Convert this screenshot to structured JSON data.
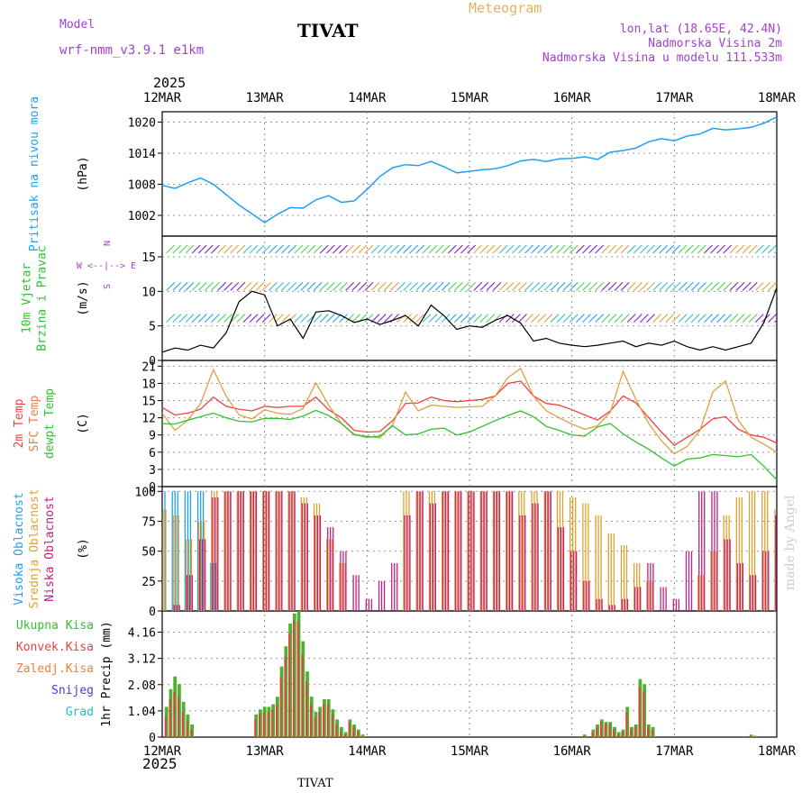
{
  "header": {
    "model_label": "Model",
    "model_name": "wrf-nmm_v3.9.1  e1km",
    "station": "TIVAT",
    "product": "Meteogram",
    "lonlat": "lon,lat (18.65E, 42.4N)",
    "elevation": "Nadmorska Visina 2m",
    "model_elevation": "Nadmorska Visina u modelu 111.533m",
    "year": "2025",
    "credit": "made by Angel"
  },
  "colors": {
    "pressure": "#1ea0ee",
    "wind_speed": "#000000",
    "t2m": "#f04040",
    "tsfc": "#e0a040",
    "dewpoint": "#30c030",
    "high_cloud": "#20a0f0",
    "mid_cloud": "#e0a030",
    "low_cloud": "#c02080",
    "precip_total": "#50b030",
    "precip_conv": "#e04040",
    "label_green": "#30c030",
    "label_red": "#f04040",
    "label_orange": "#f08040",
    "label_blue": "#4040e0",
    "label_cyan": "#20c0c0",
    "label_purple": "#a33fd4"
  },
  "x_axis": {
    "ticks": [
      "12MAR",
      "13MAR",
      "14MAR",
      "15MAR",
      "16MAR",
      "17MAR",
      "18MAR"
    ],
    "range_hours": [
      0,
      144
    ]
  },
  "chart_data": [
    {
      "type": "line",
      "id": "pressure",
      "ylabel": "(hPa)",
      "side_labels": [
        "Pritisak na nivou mora"
      ],
      "yticks": [
        1002,
        1008,
        1014,
        1020
      ],
      "ylim": [
        998,
        1022
      ],
      "x": [
        0,
        3,
        6,
        9,
        12,
        15,
        18,
        21,
        24,
        27,
        30,
        33,
        36,
        39,
        42,
        45,
        48,
        51,
        54,
        57,
        60,
        63,
        66,
        69,
        72,
        75,
        78,
        81,
        84,
        87,
        90,
        93,
        96,
        99,
        102,
        105,
        108,
        111,
        114,
        117,
        120,
        123,
        126,
        129,
        132,
        135,
        138,
        141,
        144
      ],
      "series": [
        {
          "values": [
            1007.8,
            1007.2,
            1008.3,
            1009.2,
            1008.0,
            1006.0,
            1004.0,
            1002.3,
            1000.6,
            1002.2,
            1003.5,
            1003.4,
            1005.0,
            1005.8,
            1004.5,
            1004.8,
            1007.0,
            1009.5,
            1011.2,
            1011.8,
            1011.6,
            1012.4,
            1011.4,
            1010.2,
            1010.5,
            1010.8,
            1011.0,
            1011.6,
            1012.5,
            1012.8,
            1012.4,
            1012.9,
            1013.0,
            1013.3,
            1012.8,
            1014.2,
            1014.5,
            1015.0,
            1016.2,
            1016.8,
            1016.4,
            1017.3,
            1017.7,
            1018.8,
            1018.5,
            1018.7,
            1019.0,
            1019.8,
            1021.0
          ]
        }
      ]
    },
    {
      "type": "line",
      "id": "wind",
      "ylabel": "(m/s)",
      "side_labels": [
        "10m Vjetar",
        "Brzina i Pravac"
      ],
      "compass": "N",
      "compass_row": "W <--|--> E",
      "compass_bottom": "S",
      "yticks": [
        0,
        5,
        10,
        15
      ],
      "ylim": [
        0,
        18
      ],
      "x": [
        0,
        3,
        6,
        9,
        12,
        15,
        18,
        21,
        24,
        27,
        30,
        33,
        36,
        39,
        42,
        45,
        48,
        51,
        54,
        57,
        60,
        63,
        66,
        69,
        72,
        75,
        78,
        81,
        84,
        87,
        90,
        93,
        96,
        99,
        102,
        105,
        108,
        111,
        114,
        117,
        120,
        123,
        126,
        129,
        132,
        135,
        138,
        141,
        144
      ],
      "series": [
        {
          "values": [
            1.2,
            1.8,
            1.5,
            2.2,
            1.8,
            4.0,
            8.5,
            10.0,
            9.5,
            5.0,
            6.0,
            3.2,
            7.0,
            7.2,
            6.5,
            5.5,
            6.0,
            5.2,
            5.8,
            6.5,
            5.0,
            8.0,
            6.5,
            4.5,
            5.0,
            4.8,
            5.8,
            6.5,
            5.4,
            2.8,
            3.2,
            2.5,
            2.2,
            2.0,
            2.2,
            2.5,
            2.8,
            2.0,
            2.5,
            2.2,
            2.8,
            2.0,
            1.5,
            2.0,
            1.5,
            2.0,
            2.5,
            5.5,
            10.5
          ]
        }
      ]
    },
    {
      "type": "line",
      "id": "temperature",
      "ylabel": "(C)",
      "side_labels": [
        "2m Temp",
        "SFC Temp",
        "dewpt Temp"
      ],
      "yticks": [
        0,
        3,
        6,
        9,
        12,
        15,
        18,
        21
      ],
      "ylim": [
        0,
        22
      ],
      "x": [
        0,
        3,
        6,
        9,
        12,
        15,
        18,
        21,
        24,
        27,
        30,
        33,
        36,
        39,
        42,
        45,
        48,
        51,
        54,
        57,
        60,
        63,
        66,
        69,
        72,
        75,
        78,
        81,
        84,
        87,
        90,
        93,
        96,
        99,
        102,
        105,
        108,
        111,
        114,
        117,
        120,
        123,
        126,
        129,
        132,
        135,
        138,
        141,
        144
      ],
      "series": [
        {
          "name": "2m Temp",
          "values": [
            13.8,
            12.5,
            12.8,
            13.5,
            15.6,
            14.0,
            13.5,
            13.2,
            14.0,
            13.8,
            14.0,
            14.0,
            15.6,
            13.4,
            12.0,
            9.8,
            9.5,
            9.6,
            11.5,
            14.5,
            14.6,
            15.6,
            15.0,
            14.8,
            15.0,
            15.2,
            15.8,
            18.0,
            18.4,
            15.8,
            14.5,
            14.2,
            13.4,
            12.5,
            11.6,
            13.2,
            15.8,
            14.6,
            12.0,
            9.5,
            7.2,
            8.6,
            10.0,
            11.8,
            12.2,
            10.0,
            9.0,
            8.6,
            7.6
          ]
        },
        {
          "name": "SFC Temp",
          "values": [
            12.8,
            9.8,
            11.6,
            14.5,
            20.4,
            15.8,
            12.5,
            11.8,
            13.4,
            12.8,
            12.6,
            13.6,
            18.1,
            14.2,
            11.0,
            9.0,
            8.8,
            8.5,
            10.8,
            16.5,
            13.2,
            14.2,
            14.0,
            13.8,
            13.9,
            14.0,
            15.8,
            19.0,
            20.6,
            15.8,
            13.2,
            12.0,
            10.9,
            10.0,
            10.6,
            13.0,
            20.1,
            15.2,
            11.0,
            8.0,
            5.7,
            7.0,
            9.8,
            16.5,
            18.4,
            11.5,
            8.6,
            7.4,
            6.0
          ]
        },
        {
          "name": "dewpt Temp",
          "values": [
            11.0,
            10.9,
            11.6,
            12.2,
            12.8,
            12.0,
            11.4,
            11.3,
            11.9,
            11.9,
            11.7,
            12.3,
            13.3,
            12.4,
            11.0,
            9.1,
            8.6,
            8.8,
            10.6,
            9.0,
            9.2,
            10.0,
            10.2,
            9.0,
            9.5,
            10.5,
            11.5,
            12.4,
            13.2,
            12.2,
            10.5,
            9.8,
            9.0,
            8.8,
            10.4,
            11.0,
            9.2,
            7.8,
            6.5,
            5.0,
            3.6,
            4.8,
            5.0,
            5.6,
            5.4,
            5.2,
            5.6,
            3.5,
            1.2
          ]
        }
      ]
    },
    {
      "type": "bar",
      "id": "clouds",
      "ylabel": "(%)",
      "side_labels": [
        "Visoka Oblacnost",
        "Srednja Oblacnost",
        "Niska Oblacnost"
      ],
      "yticks": [
        0,
        25,
        50,
        75,
        100
      ],
      "ylim": [
        0,
        104
      ],
      "x": [
        0,
        3,
        6,
        9,
        12,
        15,
        18,
        21,
        24,
        27,
        30,
        33,
        36,
        39,
        42,
        45,
        48,
        51,
        54,
        57,
        60,
        63,
        66,
        69,
        72,
        75,
        78,
        81,
        84,
        87,
        90,
        93,
        96,
        99,
        102,
        105,
        108,
        111,
        114,
        117,
        120,
        123,
        126,
        129,
        132,
        135,
        138,
        141,
        144
      ],
      "series": [
        {
          "name": "Visoka Oblacnost",
          "values": [
            100,
            100,
            100,
            100,
            40,
            0,
            0,
            0,
            0,
            0,
            0,
            0,
            0,
            0,
            0,
            0,
            0,
            0,
            0,
            0,
            0,
            0,
            0,
            0,
            0,
            0,
            0,
            0,
            0,
            0,
            0,
            0,
            0,
            0,
            0,
            0,
            0,
            0,
            0,
            0,
            0,
            0,
            0,
            0,
            0,
            0,
            0,
            0,
            0
          ]
        },
        {
          "name": "Srednja Oblacnost",
          "values": [
            85,
            80,
            60,
            75,
            100,
            100,
            100,
            100,
            100,
            100,
            100,
            95,
            90,
            60,
            40,
            0,
            0,
            0,
            0,
            100,
            100,
            100,
            100,
            100,
            100,
            100,
            100,
            100,
            100,
            100,
            100,
            100,
            95,
            90,
            80,
            65,
            55,
            40,
            25,
            0,
            0,
            0,
            30,
            50,
            80,
            95,
            100,
            100,
            85
          ]
        },
        {
          "name": "Niska Oblacnost",
          "values": [
            0,
            5,
            30,
            60,
            95,
            100,
            100,
            100,
            100,
            100,
            100,
            90,
            80,
            70,
            50,
            30,
            10,
            25,
            40,
            80,
            100,
            90,
            100,
            100,
            100,
            100,
            100,
            100,
            80,
            90,
            100,
            70,
            50,
            25,
            10,
            5,
            10,
            20,
            40,
            20,
            10,
            50,
            100,
            100,
            60,
            40,
            30,
            50,
            80
          ]
        }
      ]
    },
    {
      "type": "bar",
      "id": "precip",
      "ylabel": "1hr Precip (mm)",
      "side_labels": [
        "Ukupna Kisa",
        "Konvek.Kisa",
        "Zaledj.Kisa",
        "Snijeg",
        "Grad"
      ],
      "yticks": [
        0,
        1.04,
        2.08,
        3.12,
        4.16
      ],
      "ylim": [
        0,
        5.0
      ],
      "x": [
        1,
        2,
        3,
        4,
        5,
        6,
        7,
        22,
        23,
        24,
        25,
        26,
        27,
        28,
        29,
        30,
        31,
        32,
        33,
        34,
        35,
        36,
        37,
        38,
        39,
        40,
        41,
        42,
        43,
        44,
        45,
        46,
        47,
        99,
        101,
        102,
        103,
        104,
        105,
        106,
        107,
        108,
        109,
        110,
        111,
        112,
        113,
        114,
        115,
        138,
        139
      ],
      "series": [
        {
          "name": "Ukupna Kisa",
          "values": [
            1.2,
            1.9,
            2.4,
            2.1,
            1.4,
            0.9,
            0.5,
            0.9,
            1.1,
            1.2,
            1.2,
            1.3,
            1.6,
            2.8,
            3.6,
            4.5,
            4.9,
            5.0,
            3.8,
            2.6,
            1.6,
            1.0,
            1.2,
            1.5,
            1.5,
            1.1,
            0.7,
            0.4,
            0.2,
            0.7,
            0.5,
            0.3,
            0.1,
            0.1,
            0.3,
            0.5,
            0.7,
            0.6,
            0.6,
            0.4,
            0.2,
            0.3,
            1.2,
            0.4,
            0.5,
            2.3,
            2.1,
            0.5,
            0.4,
            0.1,
            0.05
          ]
        },
        {
          "name": "Konvek.Kisa",
          "values": [
            0.8,
            1.5,
            1.8,
            1.6,
            1.0,
            0.6,
            0.3,
            0.7,
            0.9,
            1.0,
            1.0,
            1.1,
            1.3,
            2.4,
            3.2,
            4.1,
            4.6,
            4.6,
            3.3,
            2.2,
            1.3,
            0.8,
            1.0,
            1.3,
            1.3,
            0.9,
            0.5,
            0.2,
            0.1,
            0.6,
            0.4,
            0.2,
            0.05,
            0.05,
            0.2,
            0.4,
            0.6,
            0.5,
            0.5,
            0.3,
            0.1,
            0.2,
            1.0,
            0.3,
            0.4,
            2.0,
            1.8,
            0.4,
            0.3,
            0.05,
            0.05
          ]
        }
      ]
    }
  ]
}
